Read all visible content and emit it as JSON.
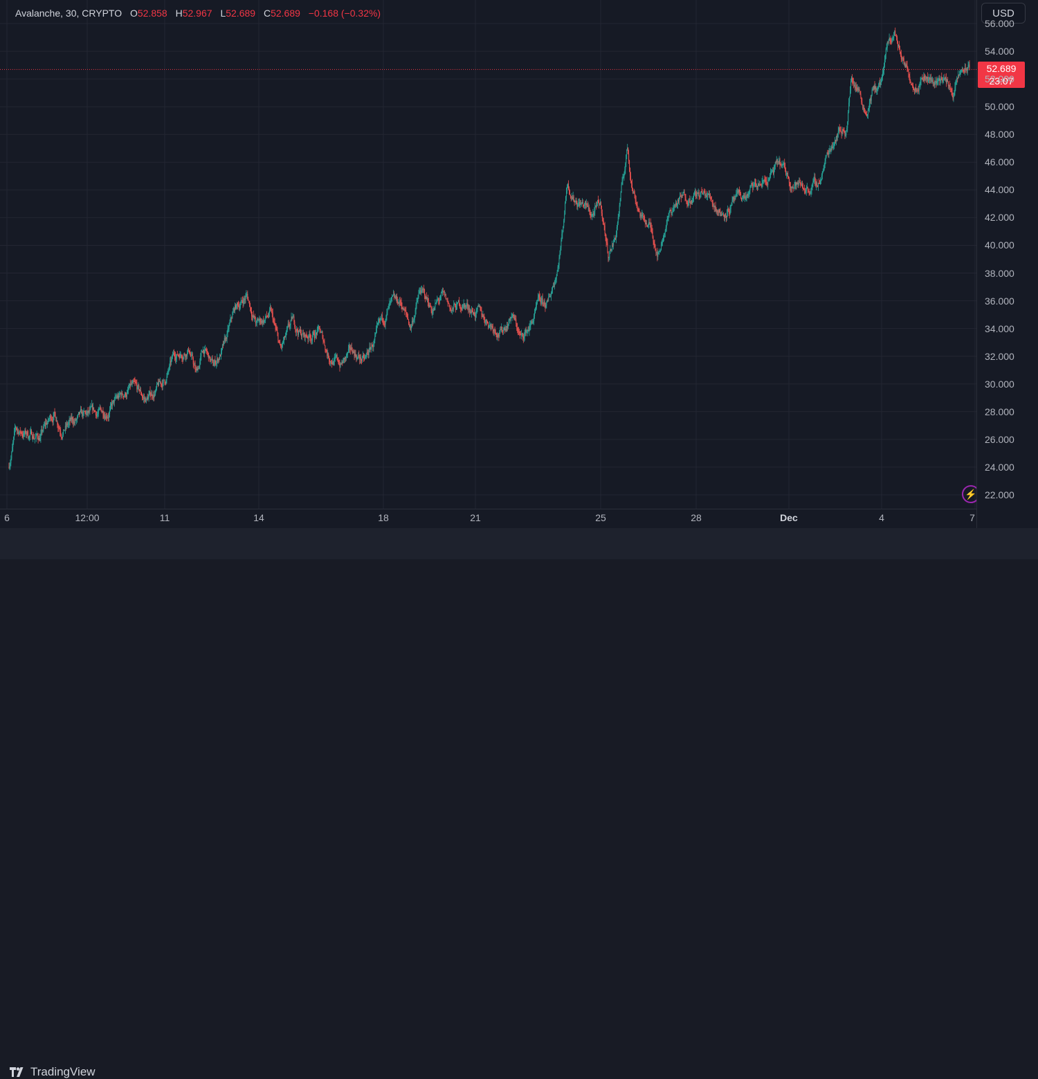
{
  "legend": {
    "symbol": "Avalanche, 30, CRYPTO",
    "open_key": "O",
    "open": "52.858",
    "high_key": "H",
    "high": "52.967",
    "low_key": "L",
    "low": "52.689",
    "close_key": "C",
    "close": "52.689",
    "change": "−0.168 (−0.32%)"
  },
  "currency_button": "USD",
  "last_price": {
    "value": "52.689",
    "countdown": "23:07"
  },
  "branding": {
    "name": "TradingView"
  },
  "colors": {
    "up": "#26a69a",
    "down": "#ef5350",
    "last_price": "#f23645",
    "background": "#161a25",
    "grid": "#232632"
  },
  "chart_data": {
    "type": "candlestick",
    "title": "",
    "symbol": "Avalanche",
    "interval": "30",
    "exchange": "CRYPTO",
    "currency": "USD",
    "y_ticks": [
      22,
      24,
      26,
      28,
      30,
      32,
      34,
      36,
      38,
      40,
      42,
      44,
      46,
      48,
      50,
      52,
      54,
      56
    ],
    "y_tick_labels": [
      "22.000",
      "24.000",
      "26.000",
      "28.000",
      "30.000",
      "32.000",
      "34.000",
      "36.000",
      "38.000",
      "40.000",
      "42.000",
      "44.000",
      "46.000",
      "48.000",
      "50.000",
      "52.000",
      "54.000",
      "56.000"
    ],
    "ylim": [
      21.0,
      57.7
    ],
    "x_tick_labels": [
      "6",
      "12:00",
      "11",
      "14",
      "18",
      "21",
      "25",
      "28",
      "Dec",
      "4",
      "7"
    ],
    "x_tick_bold": [
      false,
      false,
      false,
      false,
      false,
      false,
      false,
      false,
      true,
      false,
      false
    ],
    "price_path": [
      [
        0.0,
        24.0
      ],
      [
        0.3,
        26.6
      ],
      [
        1.3,
        26.2
      ],
      [
        1.9,
        27.9
      ],
      [
        2.2,
        26.9
      ],
      [
        3.0,
        27.4
      ],
      [
        3.9,
        27.9
      ],
      [
        4.4,
        28.6
      ],
      [
        5.1,
        29.7
      ],
      [
        5.7,
        28.8
      ],
      [
        6.5,
        30.2
      ],
      [
        6.9,
        32.0
      ],
      [
        7.5,
        32.7
      ],
      [
        7.8,
        30.7
      ],
      [
        8.1,
        32.5
      ],
      [
        8.5,
        31.2
      ],
      [
        9.0,
        32.8
      ],
      [
        9.4,
        35.3
      ],
      [
        9.9,
        36.4
      ],
      [
        10.3,
        34.3
      ],
      [
        10.9,
        35.0
      ],
      [
        11.3,
        32.3
      ],
      [
        11.8,
        34.3
      ],
      [
        12.3,
        33.4
      ],
      [
        12.9,
        33.8
      ],
      [
        13.3,
        32.1
      ],
      [
        13.8,
        31.4
      ],
      [
        14.3,
        32.3
      ],
      [
        14.8,
        31.6
      ],
      [
        15.3,
        33.4
      ],
      [
        15.8,
        35.4
      ],
      [
        16.3,
        35.8
      ],
      [
        16.7,
        34.1
      ],
      [
        17.1,
        36.7
      ],
      [
        17.6,
        35.4
      ],
      [
        18.0,
        36.2
      ],
      [
        18.4,
        35.3
      ],
      [
        18.9,
        35.8
      ],
      [
        19.5,
        35.1
      ],
      [
        20.1,
        34.3
      ],
      [
        20.5,
        33.8
      ],
      [
        20.9,
        35.1
      ],
      [
        21.3,
        33.2
      ],
      [
        21.7,
        34.3
      ],
      [
        22.0,
        35.6
      ],
      [
        22.4,
        35.6
      ],
      [
        22.8,
        38.5
      ],
      [
        23.0,
        41.0
      ],
      [
        23.2,
        44.7
      ],
      [
        23.5,
        43.5
      ],
      [
        23.9,
        43.0
      ],
      [
        24.2,
        42.2
      ],
      [
        24.6,
        42.8
      ],
      [
        24.9,
        39.4
      ],
      [
        25.2,
        40.6
      ],
      [
        25.5,
        44.5
      ],
      [
        25.7,
        47.0
      ],
      [
        25.9,
        44.3
      ],
      [
        26.3,
        42.0
      ],
      [
        26.6,
        41.5
      ],
      [
        27.0,
        39.5
      ],
      [
        27.3,
        41.7
      ],
      [
        27.7,
        43.0
      ],
      [
        28.2,
        43.6
      ],
      [
        28.7,
        43.6
      ],
      [
        29.1,
        43.5
      ],
      [
        29.6,
        42.4
      ],
      [
        30.1,
        43.0
      ],
      [
        30.6,
        43.5
      ],
      [
        31.0,
        44.1
      ],
      [
        31.5,
        44.7
      ],
      [
        32.0,
        45.8
      ],
      [
        32.5,
        44.6
      ],
      [
        33.0,
        44.2
      ],
      [
        33.6,
        44.3
      ],
      [
        34.0,
        46.5
      ],
      [
        34.4,
        48.3
      ],
      [
        34.8,
        48.5
      ],
      [
        35.0,
        52.1
      ],
      [
        35.3,
        51.3
      ],
      [
        35.6,
        49.8
      ],
      [
        35.9,
        51.2
      ],
      [
        36.2,
        51.5
      ],
      [
        36.5,
        54.2
      ],
      [
        36.8,
        55.3
      ],
      [
        37.0,
        54.0
      ],
      [
        37.2,
        53.0
      ],
      [
        37.6,
        51.7
      ],
      [
        38.0,
        52.5
      ],
      [
        38.4,
        51.8
      ],
      [
        38.8,
        52.2
      ],
      [
        39.2,
        51.0
      ],
      [
        39.6,
        52.6
      ],
      [
        39.9,
        52.7
      ]
    ],
    "approx_points": 1450
  }
}
